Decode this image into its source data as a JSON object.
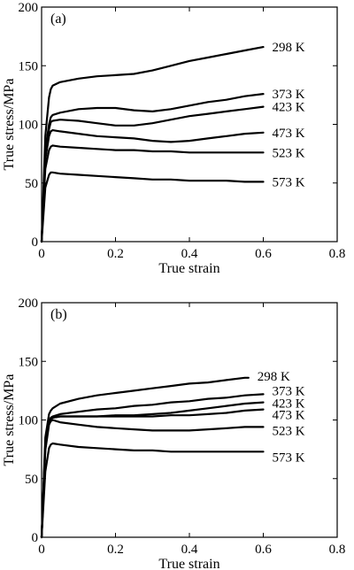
{
  "chart_data": [
    {
      "type": "line",
      "panel_label": "(a)",
      "xlabel": "True strain",
      "ylabel": "True stress/MPa",
      "xlim": [
        0,
        0.8
      ],
      "ylim": [
        0,
        200
      ],
      "xticks": [
        0,
        0.2,
        0.4,
        0.6,
        0.8
      ],
      "xtick_labels": [
        "0",
        "0.2",
        "0.4",
        "0.6",
        "0.8"
      ],
      "yticks": [
        0,
        50,
        100,
        150,
        200
      ],
      "ytick_labels": [
        "0",
        "50",
        "100",
        "150",
        "200"
      ],
      "grid": false,
      "series": [
        {
          "name": "298 K",
          "x": [
            0,
            0.01,
            0.02,
            0.025,
            0.03,
            0.05,
            0.1,
            0.15,
            0.2,
            0.25,
            0.3,
            0.35,
            0.4,
            0.45,
            0.5,
            0.55,
            0.6
          ],
          "y": [
            0,
            90,
            123,
            130,
            133,
            136,
            139,
            141,
            142,
            143,
            146,
            150,
            154,
            157,
            160,
            163,
            166
          ]
        },
        {
          "name": "373 K",
          "x": [
            0,
            0.01,
            0.02,
            0.025,
            0.03,
            0.05,
            0.1,
            0.15,
            0.2,
            0.25,
            0.3,
            0.35,
            0.4,
            0.45,
            0.5,
            0.55,
            0.6
          ],
          "y": [
            0,
            78,
            100,
            106,
            108,
            110,
            113,
            114,
            114,
            112,
            111,
            113,
            116,
            119,
            121,
            124,
            126
          ]
        },
        {
          "name": "423 K",
          "x": [
            0,
            0.01,
            0.02,
            0.025,
            0.03,
            0.05,
            0.1,
            0.15,
            0.2,
            0.25,
            0.3,
            0.35,
            0.4,
            0.45,
            0.5,
            0.55,
            0.6
          ],
          "y": [
            0,
            72,
            96,
            102,
            103,
            104,
            103,
            101,
            99,
            99,
            101,
            104,
            107,
            109,
            111,
            113,
            115
          ]
        },
        {
          "name": "473 K",
          "x": [
            0,
            0.01,
            0.02,
            0.025,
            0.03,
            0.05,
            0.1,
            0.15,
            0.2,
            0.25,
            0.3,
            0.35,
            0.4,
            0.45,
            0.5,
            0.55,
            0.6
          ],
          "y": [
            0,
            70,
            90,
            94,
            95,
            94,
            92,
            90,
            89,
            88,
            86,
            85,
            86,
            88,
            90,
            92,
            93
          ]
        },
        {
          "name": "523 K",
          "x": [
            0,
            0.01,
            0.02,
            0.025,
            0.03,
            0.05,
            0.1,
            0.15,
            0.2,
            0.25,
            0.3,
            0.35,
            0.4,
            0.45,
            0.5,
            0.55,
            0.6
          ],
          "y": [
            0,
            62,
            78,
            81,
            82,
            81,
            80,
            79,
            78,
            78,
            77,
            77,
            76,
            76,
            76,
            76,
            76
          ]
        },
        {
          "name": "573 K",
          "x": [
            0,
            0.01,
            0.02,
            0.025,
            0.03,
            0.05,
            0.1,
            0.15,
            0.2,
            0.25,
            0.3,
            0.35,
            0.4,
            0.45,
            0.5,
            0.55,
            0.6
          ],
          "y": [
            0,
            46,
            57,
            59,
            59,
            58,
            57,
            56,
            55,
            54,
            53,
            53,
            52,
            52,
            52,
            51,
            51
          ]
        }
      ]
    },
    {
      "type": "line",
      "panel_label": "(b)",
      "xlabel": "True strain",
      "ylabel": "True stress/MPa",
      "xlim": [
        0,
        0.8
      ],
      "ylim": [
        0,
        200
      ],
      "xticks": [
        0,
        0.2,
        0.4,
        0.6,
        0.8
      ],
      "xtick_labels": [
        "0",
        "0.2",
        "0.4",
        "0.6",
        "0.8"
      ],
      "yticks": [
        0,
        50,
        100,
        150,
        200
      ],
      "ytick_labels": [
        "0",
        "50",
        "100",
        "150",
        "200"
      ],
      "grid": false,
      "series": [
        {
          "name": "298 K",
          "x": [
            0,
            0.01,
            0.02,
            0.025,
            0.03,
            0.05,
            0.1,
            0.15,
            0.2,
            0.25,
            0.3,
            0.35,
            0.4,
            0.45,
            0.5,
            0.55,
            0.56
          ],
          "y": [
            0,
            85,
            105,
            108,
            110,
            114,
            118,
            121,
            123,
            125,
            127,
            129,
            131,
            132,
            134,
            136,
            136
          ]
        },
        {
          "name": "373 K",
          "x": [
            0,
            0.01,
            0.02,
            0.025,
            0.03,
            0.05,
            0.1,
            0.15,
            0.2,
            0.25,
            0.3,
            0.35,
            0.4,
            0.45,
            0.5,
            0.55,
            0.6
          ],
          "y": [
            0,
            80,
            99,
            102,
            103,
            105,
            107,
            109,
            110,
            112,
            113,
            115,
            116,
            118,
            119,
            121,
            122
          ]
        },
        {
          "name": "423 K",
          "x": [
            0,
            0.01,
            0.02,
            0.025,
            0.03,
            0.05,
            0.1,
            0.15,
            0.2,
            0.25,
            0.3,
            0.35,
            0.4,
            0.45,
            0.5,
            0.55,
            0.6
          ],
          "y": [
            0,
            78,
            99,
            101,
            102,
            103,
            103,
            103,
            104,
            104,
            105,
            106,
            108,
            110,
            112,
            114,
            115
          ]
        },
        {
          "name": "473 K",
          "x": [
            0,
            0.01,
            0.02,
            0.025,
            0.03,
            0.05,
            0.1,
            0.15,
            0.2,
            0.25,
            0.3,
            0.35,
            0.4,
            0.45,
            0.5,
            0.55,
            0.6
          ],
          "y": [
            0,
            76,
            98,
            101,
            102,
            103,
            103,
            103,
            103,
            103,
            103,
            104,
            104,
            105,
            106,
            108,
            109
          ]
        },
        {
          "name": "523 K",
          "x": [
            0,
            0.01,
            0.02,
            0.025,
            0.03,
            0.05,
            0.1,
            0.15,
            0.2,
            0.25,
            0.3,
            0.35,
            0.4,
            0.45,
            0.5,
            0.55,
            0.6
          ],
          "y": [
            0,
            74,
            96,
            99,
            100,
            98,
            96,
            94,
            93,
            92,
            91,
            91,
            91,
            92,
            93,
            94,
            94
          ]
        },
        {
          "name": "573 K",
          "x": [
            0,
            0.01,
            0.02,
            0.025,
            0.03,
            0.05,
            0.1,
            0.15,
            0.2,
            0.25,
            0.3,
            0.35,
            0.4,
            0.45,
            0.5,
            0.55,
            0.6
          ],
          "y": [
            0,
            56,
            76,
            79,
            80,
            79,
            77,
            76,
            75,
            74,
            74,
            73,
            73,
            73,
            73,
            73,
            73
          ]
        }
      ]
    }
  ]
}
